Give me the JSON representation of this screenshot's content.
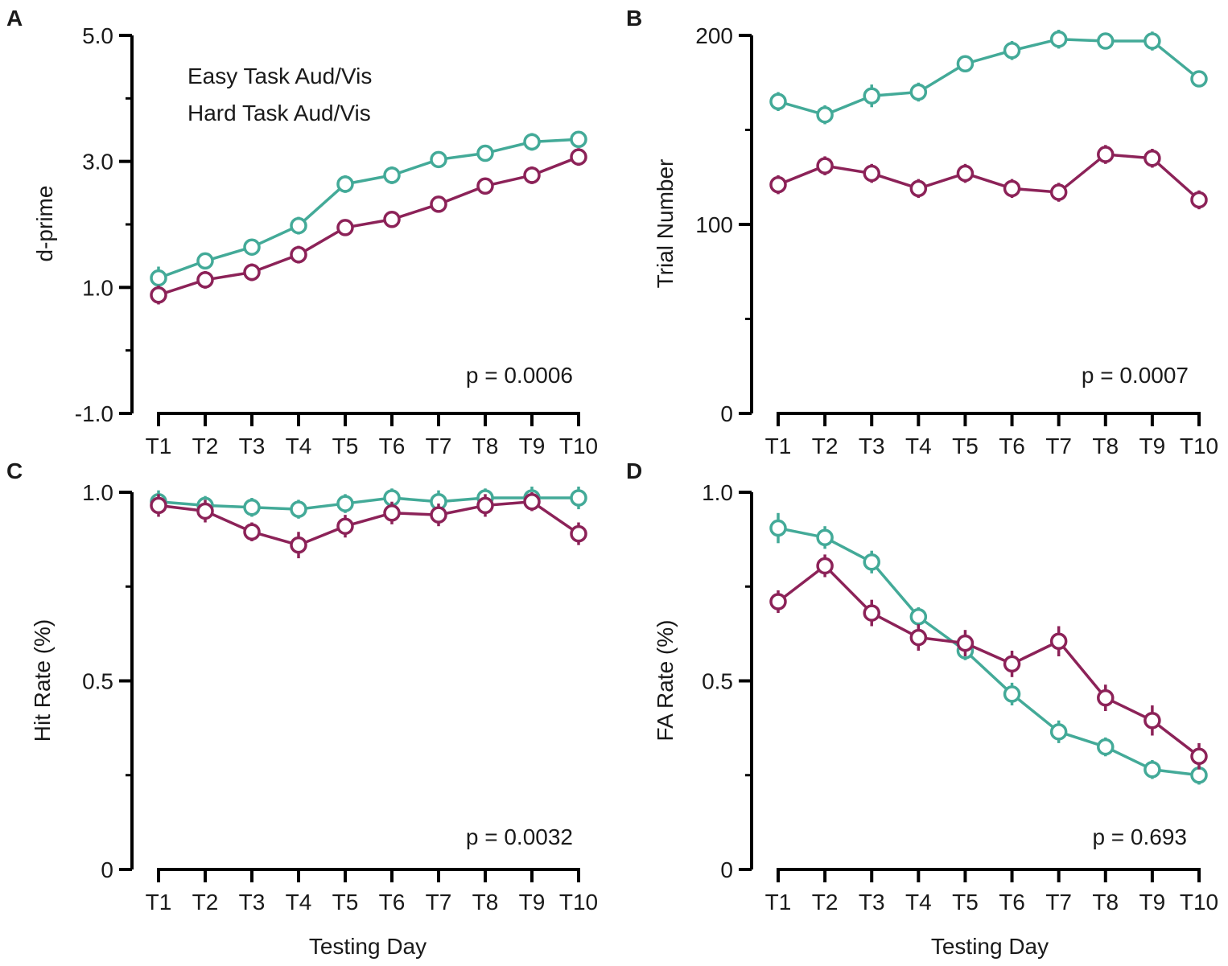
{
  "x_axis_label": "Testing Day",
  "legend": {
    "easy_label": "Easy Task Aud/Vis",
    "hard_label": "Hard Task Aud/Vis"
  },
  "colors": {
    "easy": "#43aa98",
    "hard": "#8c2258",
    "axis": "#000000"
  },
  "chart_data": [
    {
      "panel": "A",
      "type": "line",
      "ylabel": "d-prime",
      "ylim": [
        -1,
        5
      ],
      "yticks": [
        -1,
        1,
        3,
        5
      ],
      "ytick_labels": [
        "-1.0",
        "1.0",
        "3.0",
        "5.0"
      ],
      "yminor": [
        0,
        2,
        4
      ],
      "categories": [
        "T1",
        "T2",
        "T3",
        "T4",
        "T5",
        "T6",
        "T7",
        "T8",
        "T9",
        "T10"
      ],
      "p_text": "p = 0.0006",
      "series": [
        {
          "name": "Easy Task Aud/Vis",
          "values": [
            1.15,
            1.42,
            1.64,
            1.98,
            2.64,
            2.78,
            3.03,
            3.13,
            3.31,
            3.35
          ],
          "errors": [
            0.18,
            0.12,
            0.12,
            0.14,
            0.14,
            0.14,
            0.12,
            0.12,
            0.14,
            0.12
          ]
        },
        {
          "name": "Hard Task Aud/Vis",
          "values": [
            0.88,
            1.12,
            1.24,
            1.52,
            1.95,
            2.08,
            2.32,
            2.61,
            2.78,
            3.07
          ],
          "errors": [
            0.15,
            0.14,
            0.14,
            0.14,
            0.12,
            0.12,
            0.12,
            0.12,
            0.14,
            0.14
          ]
        }
      ]
    },
    {
      "panel": "B",
      "type": "line",
      "ylabel": "Trial Number",
      "ylim": [
        0,
        200
      ],
      "yticks": [
        0,
        100,
        200
      ],
      "ytick_labels": [
        "0",
        "100",
        "200"
      ],
      "yminor": [
        50,
        150
      ],
      "categories": [
        "T1",
        "T2",
        "T3",
        "T4",
        "T5",
        "T6",
        "T7",
        "T8",
        "T9",
        "T10"
      ],
      "p_text": "p = 0.0007",
      "series": [
        {
          "name": "Easy Task Aud/Vis",
          "values": [
            165,
            158,
            168,
            170,
            185,
            192,
            198,
            197,
            197,
            177
          ],
          "errors": [
            5,
            5,
            6,
            5,
            4,
            5,
            5,
            4,
            5,
            4
          ]
        },
        {
          "name": "Hard Task Aud/Vis",
          "values": [
            121,
            131,
            127,
            119,
            127,
            119,
            117,
            137,
            135,
            113
          ],
          "errors": [
            5,
            5,
            5,
            5,
            5,
            5,
            5,
            5,
            5,
            5
          ]
        }
      ]
    },
    {
      "panel": "C",
      "type": "line",
      "ylabel": "Hit Rate (%)",
      "ylim": [
        0,
        1
      ],
      "yticks": [
        0,
        0.5,
        1
      ],
      "ytick_labels": [
        "0",
        "0.5",
        "1.0"
      ],
      "yminor": [
        0.25,
        0.75
      ],
      "categories": [
        "T1",
        "T2",
        "T3",
        "T4",
        "T5",
        "T6",
        "T7",
        "T8",
        "T9",
        "T10"
      ],
      "p_text": "p = 0.0032",
      "series": [
        {
          "name": "Easy Task Aud/Vis",
          "values": [
            0.975,
            0.965,
            0.96,
            0.955,
            0.97,
            0.985,
            0.975,
            0.985,
            0.985,
            0.985
          ],
          "errors": [
            0.03,
            0.025,
            0.025,
            0.025,
            0.025,
            0.025,
            0.03,
            0.025,
            0.03,
            0.03
          ]
        },
        {
          "name": "Hard Task Aud/Vis",
          "values": [
            0.965,
            0.95,
            0.895,
            0.86,
            0.91,
            0.945,
            0.94,
            0.965,
            0.975,
            0.89
          ],
          "errors": [
            0.03,
            0.03,
            0.025,
            0.035,
            0.03,
            0.03,
            0.03,
            0.03,
            0.025,
            0.03
          ]
        }
      ]
    },
    {
      "panel": "D",
      "type": "line",
      "ylabel": "FA Rate (%)",
      "ylim": [
        0,
        1
      ],
      "yticks": [
        0,
        0.5,
        1
      ],
      "ytick_labels": [
        "0",
        "0.5",
        "1.0"
      ],
      "yminor": [
        0.25,
        0.75
      ],
      "categories": [
        "T1",
        "T2",
        "T3",
        "T4",
        "T5",
        "T6",
        "T7",
        "T8",
        "T9",
        "T10"
      ],
      "p_text": "p = 0.693",
      "series": [
        {
          "name": "Easy Task Aud/Vis",
          "values": [
            0.905,
            0.88,
            0.815,
            0.67,
            0.58,
            0.465,
            0.365,
            0.325,
            0.265,
            0.25
          ],
          "errors": [
            0.04,
            0.03,
            0.03,
            0.025,
            0.025,
            0.03,
            0.03,
            0.025,
            0.025,
            0.025
          ]
        },
        {
          "name": "Hard Task Aud/Vis",
          "values": [
            0.71,
            0.805,
            0.68,
            0.615,
            0.6,
            0.545,
            0.605,
            0.455,
            0.395,
            0.3
          ],
          "errors": [
            0.03,
            0.03,
            0.035,
            0.035,
            0.035,
            0.035,
            0.04,
            0.035,
            0.04,
            0.035
          ]
        }
      ]
    }
  ]
}
